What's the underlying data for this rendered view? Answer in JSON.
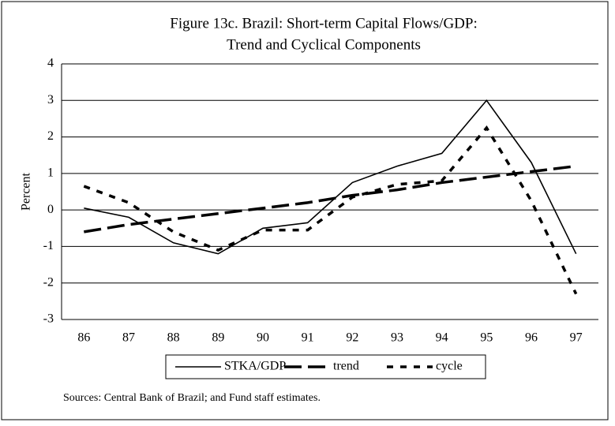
{
  "chart_data": {
    "type": "line",
    "title": [
      "Figure 13c. Brazil: Short-term Capital Flows/GDP:",
      "Trend and Cyclical Components"
    ],
    "y_label": "Percent",
    "categories": [
      "86",
      "87",
      "88",
      "89",
      "90",
      "91",
      "92",
      "93",
      "94",
      "95",
      "96",
      "97"
    ],
    "series": [
      {
        "name": "STKA/GDP",
        "color": "#000000",
        "dash": "none",
        "width": 1.6,
        "values": [
          0.05,
          -0.2,
          -0.9,
          -1.2,
          -0.5,
          -0.35,
          0.75,
          1.2,
          1.55,
          3.0,
          1.3,
          -1.2
        ]
      },
      {
        "name": "trend",
        "color": "#000000",
        "dash": "22 8",
        "width": 3.5,
        "values": [
          -0.6,
          -0.4,
          -0.25,
          -0.1,
          0.05,
          0.2,
          0.4,
          0.55,
          0.75,
          0.9,
          1.05,
          1.2
        ]
      },
      {
        "name": "cycle",
        "color": "#000000",
        "dash": "8 9",
        "width": 3.5,
        "values": [
          0.65,
          0.2,
          -0.6,
          -1.1,
          -0.55,
          -0.55,
          0.35,
          0.7,
          0.8,
          2.25,
          0.25,
          -2.3
        ]
      }
    ],
    "ylim": [
      -3,
      4
    ],
    "yticks": [
      -3,
      -2,
      -1,
      0,
      1,
      2,
      3,
      4
    ],
    "grid": true,
    "source": "Sources:  Central Bank of Brazil; and Fund staff estimates."
  }
}
